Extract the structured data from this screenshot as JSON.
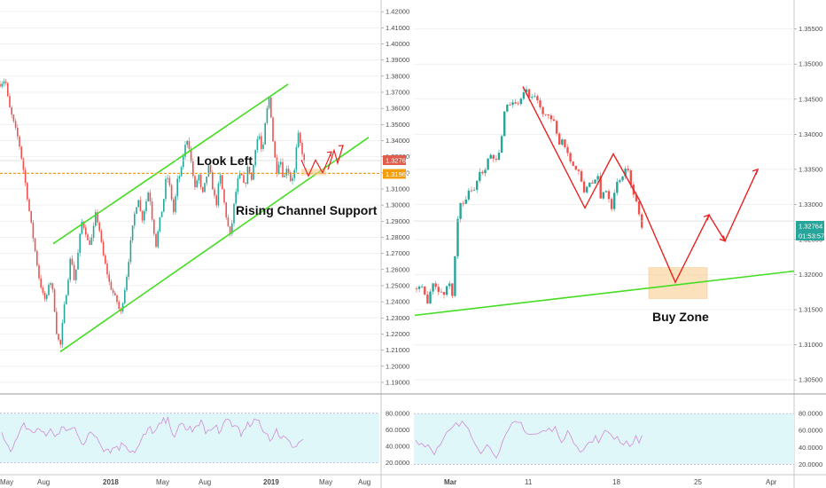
{
  "chart_data": [
    {
      "type": "candlestick",
      "panel": "left",
      "price_axis": {
        "ticks": [
          "1.42000",
          "1.41000",
          "1.40000",
          "1.39000",
          "1.38000",
          "1.37000",
          "1.36000",
          "1.35000",
          "1.34000",
          "1.33000",
          "1.32000",
          "1.31000",
          "1.30000",
          "1.29000",
          "1.28000",
          "1.27000",
          "1.26000",
          "1.25000",
          "1.24000",
          "1.23000",
          "1.22000",
          "1.21000",
          "1.20000",
          "1.19000"
        ],
        "range": [
          1.185,
          1.4245
        ]
      },
      "price_path": [
        [
          0,
          1.375
        ],
        [
          6,
          1.378
        ],
        [
          10,
          1.362
        ],
        [
          16,
          1.35
        ],
        [
          21,
          1.34
        ],
        [
          27,
          1.32
        ],
        [
          32,
          1.3
        ],
        [
          36,
          1.285
        ],
        [
          40,
          1.27
        ],
        [
          44,
          1.255
        ],
        [
          48,
          1.245
        ],
        [
          52,
          1.24
        ],
        [
          56,
          1.255
        ],
        [
          60,
          1.245
        ],
        [
          64,
          1.22
        ],
        [
          68,
          1.212
        ],
        [
          72,
          1.235
        ],
        [
          76,
          1.25
        ],
        [
          80,
          1.27
        ],
        [
          84,
          1.252
        ],
        [
          88,
          1.27
        ],
        [
          92,
          1.29
        ],
        [
          96,
          1.285
        ],
        [
          100,
          1.275
        ],
        [
          104,
          1.28
        ],
        [
          108,
          1.295
        ],
        [
          112,
          1.285
        ],
        [
          116,
          1.27
        ],
        [
          120,
          1.26
        ],
        [
          124,
          1.25
        ],
        [
          128,
          1.245
        ],
        [
          132,
          1.24
        ],
        [
          136,
          1.232
        ],
        [
          140,
          1.245
        ],
        [
          144,
          1.26
        ],
        [
          148,
          1.28
        ],
        [
          152,
          1.295
        ],
        [
          156,
          1.305
        ],
        [
          160,
          1.29
        ],
        [
          164,
          1.3
        ],
        [
          168,
          1.31
        ],
        [
          172,
          1.29
        ],
        [
          176,
          1.275
        ],
        [
          180,
          1.29
        ],
        [
          184,
          1.3
        ],
        [
          188,
          1.32
        ],
        [
          192,
          1.31
        ],
        [
          196,
          1.295
        ],
        [
          200,
          1.315
        ],
        [
          204,
          1.32
        ],
        [
          208,
          1.335
        ],
        [
          212,
          1.342
        ],
        [
          216,
          1.325
        ],
        [
          220,
          1.31
        ],
        [
          224,
          1.32
        ],
        [
          228,
          1.305
        ],
        [
          232,
          1.315
        ],
        [
          236,
          1.325
        ],
        [
          240,
          1.31
        ],
        [
          244,
          1.3
        ],
        [
          248,
          1.32
        ],
        [
          252,
          1.305
        ],
        [
          256,
          1.29
        ],
        [
          260,
          1.28
        ],
        [
          264,
          1.3
        ],
        [
          268,
          1.315
        ],
        [
          272,
          1.32
        ],
        [
          276,
          1.31
        ],
        [
          280,
          1.325
        ],
        [
          284,
          1.315
        ],
        [
          288,
          1.335
        ],
        [
          292,
          1.345
        ],
        [
          296,
          1.33
        ],
        [
          300,
          1.355
        ],
        [
          304,
          1.368
        ],
        [
          308,
          1.34
        ],
        [
          312,
          1.32
        ],
        [
          316,
          1.33
        ],
        [
          320,
          1.315
        ],
        [
          324,
          1.325
        ],
        [
          328,
          1.315
        ],
        [
          332,
          1.32
        ],
        [
          336,
          1.345
        ],
        [
          340,
          1.335
        ],
        [
          344,
          1.325
        ]
      ],
      "rising_channel": {
        "upper": [
          [
            60,
            1.276
          ],
          [
            325,
            1.375
          ]
        ],
        "lower": [
          [
            68,
            1.209
          ],
          [
            416,
            1.342
          ]
        ]
      },
      "dotted_level": 1.31965,
      "projection_arrows": [
        [
          [
            340,
            1.328
          ],
          [
            348,
            1.318
          ],
          [
            356,
            1.328
          ],
          [
            364,
            1.32
          ],
          [
            374,
            1.333
          ]
        ],
        [
          [
            370,
            1.322
          ],
          [
            377,
            1.334
          ],
          [
            381,
            1.326
          ],
          [
            387,
            1.337
          ]
        ]
      ],
      "rsi": {
        "ticks": [
          "80.0000",
          "60.0000",
          "40.0000",
          "20.0000"
        ],
        "range": [
          10,
          98
        ],
        "band": [
          20,
          80
        ]
      }
    },
    {
      "type": "candlestick",
      "panel": "right",
      "price_axis": {
        "ticks": [
          "1.35500",
          "1.35000",
          "1.34500",
          "1.34000",
          "1.33500",
          "1.33000",
          "1.32500",
          "1.32000",
          "1.31500",
          "1.31000",
          "1.30500"
        ],
        "range": [
          1.3035,
          1.3585
        ]
      },
      "price_path": [
        [
          470,
          1.318
        ],
        [
          477,
          1.318
        ],
        [
          482,
          1.316
        ],
        [
          488,
          1.319
        ],
        [
          494,
          1.318
        ],
        [
          500,
          1.317
        ],
        [
          506,
          1.319
        ],
        [
          511,
          1.317
        ],
        [
          514,
          1.3238
        ],
        [
          518,
          1.3305
        ],
        [
          522,
          1.3295
        ],
        [
          526,
          1.331
        ],
        [
          530,
          1.3325
        ],
        [
          534,
          1.3315
        ],
        [
          538,
          1.3335
        ],
        [
          542,
          1.335
        ],
        [
          546,
          1.3345
        ],
        [
          550,
          1.3365
        ],
        [
          554,
          1.337
        ],
        [
          558,
          1.336
        ],
        [
          562,
          1.3365
        ],
        [
          566,
          1.3395
        ],
        [
          570,
          1.3445
        ],
        [
          574,
          1.344
        ],
        [
          578,
          1.3448
        ],
        [
          582,
          1.3442
        ],
        [
          586,
          1.3446
        ],
        [
          590,
          1.3455
        ],
        [
          594,
          1.3465
        ],
        [
          598,
          1.3445
        ],
        [
          602,
          1.3455
        ],
        [
          606,
          1.345
        ],
        [
          610,
          1.3435
        ],
        [
          614,
          1.343
        ],
        [
          618,
          1.3425
        ],
        [
          622,
          1.342
        ],
        [
          626,
          1.3415
        ],
        [
          630,
          1.3385
        ],
        [
          634,
          1.3395
        ],
        [
          638,
          1.338
        ],
        [
          642,
          1.337
        ],
        [
          646,
          1.3355
        ],
        [
          650,
          1.335
        ],
        [
          654,
          1.3345
        ],
        [
          658,
          1.3315
        ],
        [
          662,
          1.3325
        ],
        [
          666,
          1.3335
        ],
        [
          670,
          1.3325
        ],
        [
          674,
          1.3345
        ],
        [
          678,
          1.3305
        ],
        [
          682,
          1.3325
        ],
        [
          686,
          1.3315
        ],
        [
          690,
          1.3295
        ],
        [
          694,
          1.3325
        ],
        [
          698,
          1.3335
        ],
        [
          702,
          1.334
        ],
        [
          706,
          1.335
        ],
        [
          710,
          1.3345
        ],
        [
          714,
          1.3315
        ],
        [
          718,
          1.3305
        ],
        [
          722,
          1.328
        ],
        [
          726,
          1.3262
        ]
      ],
      "support_line": [
        [
          468,
          1.3142
        ],
        [
          896,
          1.3205
        ]
      ],
      "red_path": [
        [
          590,
          1.3468
        ],
        [
          660,
          1.3295
        ],
        [
          692,
          1.3372
        ],
        [
          722,
          1.3305
        ],
        [
          762,
          1.3189
        ],
        [
          800,
          1.3285
        ],
        [
          818,
          1.3248
        ],
        [
          855,
          1.335
        ]
      ],
      "buy_zone": {
        "x": [
          732,
          798
        ],
        "y": [
          1.321,
          1.3166
        ]
      },
      "rsi": {
        "ticks": [
          "80.0000",
          "60.0000",
          "40.0000",
          "20.0000"
        ],
        "range": [
          12,
          98
        ],
        "band": [
          20,
          80
        ]
      }
    }
  ],
  "x_axis_left": [
    "May",
    "Aug",
    "2018",
    "May",
    "Aug",
    "2019",
    "May",
    "Aug"
  ],
  "x_axis_right": [
    "Mar",
    "11",
    "18",
    "25",
    "Apr"
  ],
  "annotations": {
    "look_left": "Look Left",
    "rising_channel_support": "Rising Channel Support",
    "buy_zone": "Buy Zone"
  },
  "price_tags": {
    "left_current": "1.32764",
    "left_level": "1.31965",
    "right_current": "1.32764",
    "right_timer": "01:53:57"
  },
  "colors": {
    "bull": "#26a69a",
    "bear": "#ef5350",
    "channel": "#44dd22",
    "annotation_red": "#e82222",
    "level_orange": "#f59e0b",
    "current_tag": "#e05c4b",
    "rsi_band": "#e0f7fa",
    "rsi_line": "#d08ad6"
  }
}
